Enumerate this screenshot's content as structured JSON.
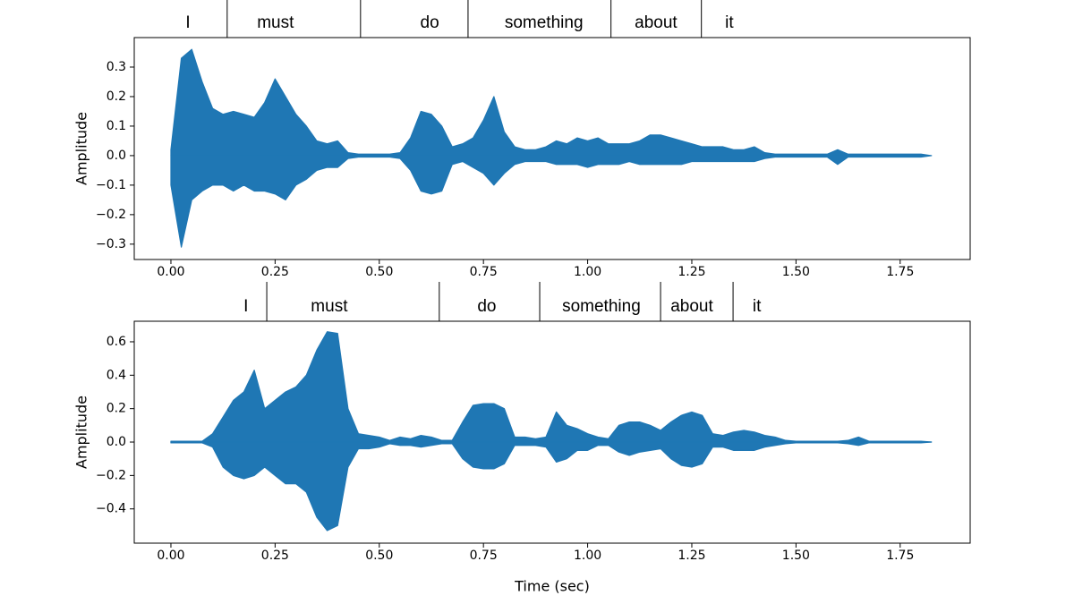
{
  "chart_data": [
    {
      "type": "area",
      "ylabel": "Amplitude",
      "words": [
        "I",
        "must",
        "do",
        "something",
        "about",
        "it"
      ],
      "word_positions": [
        0.041,
        0.251,
        0.621,
        0.895,
        1.164,
        1.34
      ],
      "word_boundaries": [
        0.135,
        0.455,
        0.713,
        1.056,
        1.273
      ],
      "xlim": [
        -0.088,
        1.918
      ],
      "ylim": [
        -0.352,
        0.4
      ],
      "xticks": [
        {
          "value": 0,
          "label": "0.00"
        },
        0.25,
        {
          "value": 0.5,
          "label": "0.50"
        },
        0.75,
        {
          "value": 1,
          "label": "1.00"
        },
        1.25,
        {
          "value": 1.5,
          "label": "1.50"
        },
        1.75
      ],
      "yticks": [
        {
          "value": -0.3,
          "label": "−0.3"
        },
        {
          "value": -0.2,
          "label": "−0.2"
        },
        {
          "value": -0.1,
          "label": "−0.1"
        },
        {
          "value": 0,
          "label": "0.0"
        },
        0.1,
        0.2,
        0.3
      ],
      "x": [
        0,
        0.025,
        0.05,
        0.075,
        0.1,
        0.125,
        0.15,
        0.175,
        0.2,
        0.225,
        0.25,
        0.275,
        0.3,
        0.325,
        0.35,
        0.375,
        0.4,
        0.425,
        0.45,
        0.475,
        0.5,
        0.525,
        0.55,
        0.575,
        0.6,
        0.625,
        0.65,
        0.675,
        0.7,
        0.725,
        0.75,
        0.775,
        0.8,
        0.825,
        0.85,
        0.875,
        0.9,
        0.925,
        0.95,
        0.975,
        1.0,
        1.025,
        1.05,
        1.075,
        1.1,
        1.125,
        1.15,
        1.175,
        1.2,
        1.225,
        1.25,
        1.275,
        1.3,
        1.325,
        1.35,
        1.375,
        1.4,
        1.425,
        1.45,
        1.475,
        1.5,
        1.525,
        1.55,
        1.575,
        1.6,
        1.625,
        1.65,
        1.675,
        1.7,
        1.725,
        1.75,
        1.775,
        1.8,
        1.825
      ],
      "series": [
        {
          "color": "#1f77b4",
          "values": [
            0.02,
            0.33,
            0.36,
            0.25,
            0.16,
            0.14,
            0.15,
            0.14,
            0.13,
            0.18,
            0.26,
            0.2,
            0.14,
            0.1,
            0.05,
            0.04,
            0.05,
            0.01,
            0.005,
            0.005,
            0.005,
            0.005,
            0.01,
            0.06,
            0.15,
            0.14,
            0.1,
            0.03,
            0.04,
            0.06,
            0.12,
            0.2,
            0.08,
            0.03,
            0.02,
            0.02,
            0.03,
            0.05,
            0.04,
            0.06,
            0.05,
            0.06,
            0.04,
            0.04,
            0.04,
            0.05,
            0.07,
            0.07,
            0.06,
            0.05,
            0.04,
            0.03,
            0.03,
            0.03,
            0.02,
            0.02,
            0.03,
            0.01,
            0.005,
            0.005,
            0.005,
            0.005,
            0.005,
            0.005,
            0.02,
            0.005,
            0.005,
            0.005,
            0.005,
            0.005,
            0.005,
            0.005,
            0.005,
            0
          ]
        },
        {
          "color": "#1f77b4",
          "values": [
            -0.1,
            -0.31,
            -0.15,
            -0.12,
            -0.1,
            -0.1,
            -0.12,
            -0.1,
            -0.12,
            -0.12,
            -0.13,
            -0.15,
            -0.1,
            -0.08,
            -0.05,
            -0.04,
            -0.04,
            -0.01,
            -0.005,
            -0.005,
            -0.005,
            -0.005,
            -0.01,
            -0.05,
            -0.12,
            -0.13,
            -0.12,
            -0.03,
            -0.02,
            -0.04,
            -0.06,
            -0.1,
            -0.06,
            -0.03,
            -0.02,
            -0.02,
            -0.02,
            -0.03,
            -0.03,
            -0.03,
            -0.04,
            -0.03,
            -0.03,
            -0.03,
            -0.02,
            -0.03,
            -0.03,
            -0.03,
            -0.03,
            -0.03,
            -0.02,
            -0.02,
            -0.02,
            -0.02,
            -0.02,
            -0.02,
            -0.02,
            -0.01,
            -0.005,
            -0.005,
            -0.005,
            -0.005,
            -0.005,
            -0.005,
            -0.03,
            -0.005,
            -0.005,
            -0.005,
            -0.005,
            -0.005,
            -0.005,
            -0.005,
            -0.005,
            0
          ]
        }
      ]
    },
    {
      "type": "area",
      "ylabel": "Amplitude",
      "xlabel": "Time (sec)",
      "words": [
        "I",
        "must",
        "do",
        "something",
        "about",
        "it"
      ],
      "word_positions": [
        0.18,
        0.38,
        0.758,
        1.033,
        1.25,
        1.406
      ],
      "word_boundaries": [
        0.23,
        0.644,
        0.885,
        1.175,
        1.349
      ],
      "xlim": [
        -0.088,
        1.918
      ],
      "ylim": [
        -0.605,
        0.723
      ],
      "xticks": [
        {
          "value": 0,
          "label": "0.00"
        },
        0.25,
        {
          "value": 0.5,
          "label": "0.50"
        },
        0.75,
        {
          "value": 1,
          "label": "1.00"
        },
        1.25,
        {
          "value": 1.5,
          "label": "1.50"
        },
        1.75
      ],
      "yticks": [
        {
          "value": -0.4,
          "label": "−0.4"
        },
        {
          "value": -0.2,
          "label": "−0.2"
        },
        {
          "value": 0,
          "label": "0.0"
        },
        0.2,
        0.4,
        0.6
      ],
      "x": [
        0,
        0.025,
        0.05,
        0.075,
        0.1,
        0.125,
        0.15,
        0.175,
        0.2,
        0.225,
        0.25,
        0.275,
        0.3,
        0.325,
        0.35,
        0.375,
        0.4,
        0.425,
        0.45,
        0.475,
        0.5,
        0.525,
        0.55,
        0.575,
        0.6,
        0.625,
        0.65,
        0.675,
        0.7,
        0.725,
        0.75,
        0.775,
        0.8,
        0.825,
        0.85,
        0.875,
        0.9,
        0.925,
        0.95,
        0.975,
        1.0,
        1.025,
        1.05,
        1.075,
        1.1,
        1.125,
        1.15,
        1.175,
        1.2,
        1.225,
        1.25,
        1.275,
        1.3,
        1.325,
        1.35,
        1.375,
        1.4,
        1.425,
        1.45,
        1.475,
        1.5,
        1.525,
        1.55,
        1.575,
        1.6,
        1.625,
        1.65,
        1.675,
        1.7,
        1.725,
        1.75,
        1.775,
        1.8,
        1.825
      ],
      "series": [
        {
          "color": "#1f77b4",
          "values": [
            0.005,
            0.005,
            0.005,
            0.005,
            0.05,
            0.15,
            0.25,
            0.3,
            0.43,
            0.2,
            0.25,
            0.3,
            0.33,
            0.4,
            0.55,
            0.66,
            0.65,
            0.2,
            0.05,
            0.04,
            0.03,
            0.01,
            0.03,
            0.02,
            0.04,
            0.03,
            0.01,
            0.01,
            0.12,
            0.22,
            0.23,
            0.23,
            0.2,
            0.03,
            0.03,
            0.02,
            0.03,
            0.18,
            0.1,
            0.08,
            0.05,
            0.03,
            0.02,
            0.1,
            0.12,
            0.12,
            0.1,
            0.07,
            0.12,
            0.16,
            0.18,
            0.16,
            0.05,
            0.04,
            0.06,
            0.07,
            0.06,
            0.04,
            0.03,
            0.01,
            0.005,
            0.005,
            0.005,
            0.005,
            0.005,
            0.01,
            0.03,
            0.005,
            0.005,
            0.005,
            0.005,
            0.005,
            0.005,
            0
          ]
        },
        {
          "color": "#1f77b4",
          "values": [
            -0.005,
            -0.005,
            -0.005,
            -0.005,
            -0.03,
            -0.15,
            -0.2,
            -0.22,
            -0.2,
            -0.15,
            -0.2,
            -0.25,
            -0.25,
            -0.3,
            -0.45,
            -0.53,
            -0.5,
            -0.15,
            -0.04,
            -0.04,
            -0.03,
            -0.01,
            -0.02,
            -0.02,
            -0.03,
            -0.02,
            -0.01,
            -0.01,
            -0.1,
            -0.15,
            -0.16,
            -0.16,
            -0.13,
            -0.02,
            -0.02,
            -0.02,
            -0.03,
            -0.12,
            -0.1,
            -0.05,
            -0.05,
            -0.02,
            -0.02,
            -0.06,
            -0.08,
            -0.06,
            -0.05,
            -0.04,
            -0.1,
            -0.14,
            -0.15,
            -0.13,
            -0.03,
            -0.03,
            -0.05,
            -0.05,
            -0.05,
            -0.03,
            -0.02,
            -0.01,
            -0.005,
            -0.005,
            -0.005,
            -0.005,
            -0.005,
            -0.01,
            -0.02,
            -0.005,
            -0.005,
            -0.005,
            -0.005,
            -0.005,
            -0.005,
            0
          ]
        }
      ]
    }
  ]
}
